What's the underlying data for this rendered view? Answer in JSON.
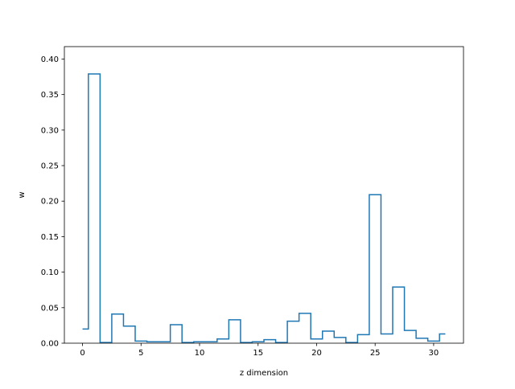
{
  "chart_data": {
    "type": "step",
    "title": "",
    "xlabel": "z dimension",
    "ylabel": "w",
    "xlim": [
      -1.55,
      32.55
    ],
    "ylim": [
      0,
      0.4175
    ],
    "grid": false,
    "line_color": "#1f77b4",
    "x_ticks": [
      0,
      5,
      10,
      15,
      20,
      25,
      30
    ],
    "x_tick_labels": [
      "0",
      "5",
      "10",
      "15",
      "20",
      "25",
      "30"
    ],
    "y_ticks": [
      0.0,
      0.05,
      0.1,
      0.15,
      0.2,
      0.25,
      0.3,
      0.35,
      0.4
    ],
    "y_tick_labels": [
      "0.00",
      "0.05",
      "0.10",
      "0.15",
      "0.20",
      "0.25",
      "0.30",
      "0.35",
      "0.40"
    ],
    "x": [
      0,
      1,
      2,
      3,
      4,
      5,
      6,
      7,
      8,
      9,
      10,
      11,
      12,
      13,
      14,
      15,
      16,
      17,
      18,
      19,
      20,
      21,
      22,
      23,
      24,
      25,
      26,
      27,
      28,
      29,
      30,
      31
    ],
    "values": [
      0.02,
      0.379,
      0.001,
      0.041,
      0.024,
      0.003,
      0.002,
      0.002,
      0.026,
      0.001,
      0.002,
      0.002,
      0.006,
      0.033,
      0.001,
      0.002,
      0.005,
      0.001,
      0.031,
      0.042,
      0.006,
      0.017,
      0.008,
      0.001,
      0.012,
      0.209,
      0.013,
      0.079,
      0.018,
      0.007,
      0.003,
      0.013
    ]
  }
}
